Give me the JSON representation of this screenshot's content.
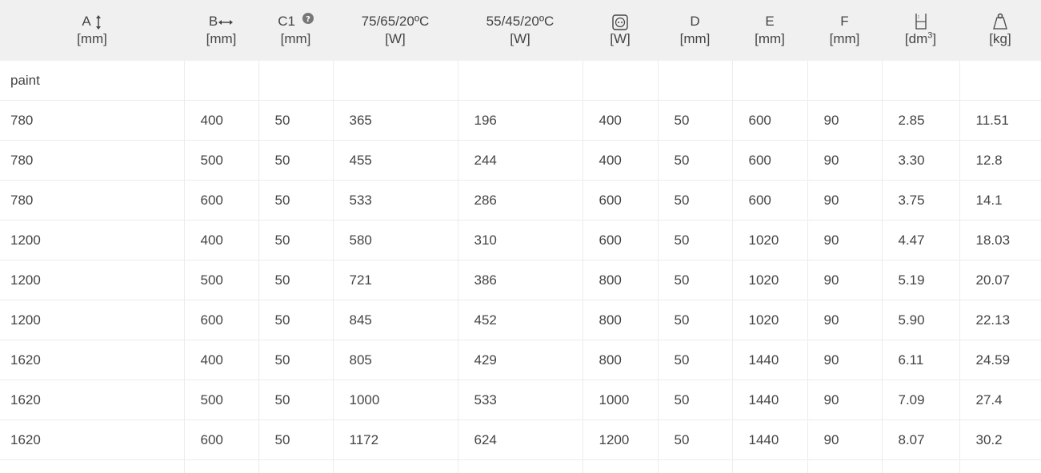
{
  "table": {
    "headers": [
      {
        "label": "A",
        "unit": "[mm]",
        "icon": "vertical-arrow-icon"
      },
      {
        "label": "B",
        "unit": "[mm]",
        "icon": "horizontal-arrow-icon"
      },
      {
        "label": "C1",
        "unit": "[mm]",
        "icon": "help-icon"
      },
      {
        "label": "75/65/20ºC",
        "unit": "[W]"
      },
      {
        "label": "55/45/20ºC",
        "unit": "[W]"
      },
      {
        "label": "",
        "unit": "[W]",
        "icon": "socket-icon"
      },
      {
        "label": "D",
        "unit": "[mm]"
      },
      {
        "label": "E",
        "unit": "[mm]"
      },
      {
        "label": "F",
        "unit": "[mm]"
      },
      {
        "label": "",
        "unit": "[dm",
        "unit_sup": "3",
        "unit_end": "]",
        "icon": "water-volume-icon"
      },
      {
        "label": "",
        "unit": "[kg]",
        "icon": "weight-icon"
      }
    ],
    "group_row": [
      "paint",
      "",
      "",
      "",
      "",
      "",
      "",
      "",
      "",
      "",
      ""
    ],
    "rows": [
      [
        "780",
        "400",
        "50",
        "365",
        "196",
        "400",
        "50",
        "600",
        "90",
        "2.85",
        "11.51"
      ],
      [
        "780",
        "500",
        "50",
        "455",
        "244",
        "400",
        "50",
        "600",
        "90",
        "3.30",
        "12.8"
      ],
      [
        "780",
        "600",
        "50",
        "533",
        "286",
        "600",
        "50",
        "600",
        "90",
        "3.75",
        "14.1"
      ],
      [
        "1200",
        "400",
        "50",
        "580",
        "310",
        "600",
        "50",
        "1020",
        "90",
        "4.47",
        "18.03"
      ],
      [
        "1200",
        "500",
        "50",
        "721",
        "386",
        "800",
        "50",
        "1020",
        "90",
        "5.19",
        "20.07"
      ],
      [
        "1200",
        "600",
        "50",
        "845",
        "452",
        "800",
        "50",
        "1020",
        "90",
        "5.90",
        "22.13"
      ],
      [
        "1620",
        "400",
        "50",
        "805",
        "429",
        "800",
        "50",
        "1440",
        "90",
        "6.11",
        "24.59"
      ],
      [
        "1620",
        "500",
        "50",
        "1000",
        "533",
        "1000",
        "50",
        "1440",
        "90",
        "7.09",
        "27.4"
      ],
      [
        "1620",
        "600",
        "50",
        "1172",
        "624",
        "1200",
        "50",
        "1440",
        "90",
        "8.07",
        "30.2"
      ]
    ]
  }
}
